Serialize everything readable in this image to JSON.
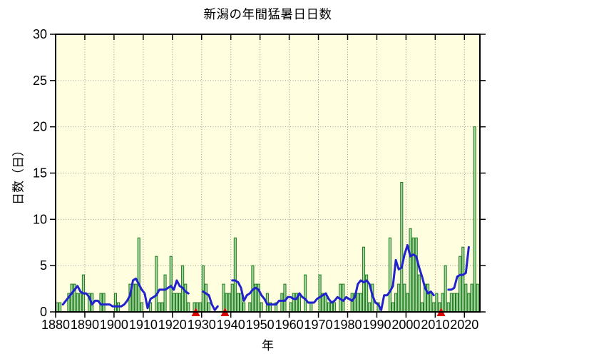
{
  "figure": {
    "title": "新潟の年間猛暑日日数",
    "xlabel": "年",
    "ylabel": "日数（日）"
  },
  "chart_data": {
    "type": "bar",
    "title": "新潟の年間猛暑日日数",
    "xlabel": "年",
    "ylabel": "日数（日）",
    "start_year": 1880,
    "end_year": 2024,
    "values": [
      1,
      1,
      0,
      0,
      2,
      3,
      3,
      2,
      2,
      4,
      0,
      2,
      2,
      0,
      0,
      2,
      2,
      0,
      0,
      0,
      2,
      1,
      0,
      0,
      0,
      3,
      3,
      3,
      8,
      1,
      0,
      0,
      1,
      0,
      6,
      1,
      1,
      4,
      0,
      6,
      2,
      2,
      2,
      5,
      3,
      1,
      0,
      1,
      1,
      1,
      5,
      3,
      1,
      0,
      0,
      0,
      0,
      3,
      2,
      2,
      3,
      8,
      2,
      2,
      1,
      0,
      1,
      5,
      3,
      3,
      1,
      0,
      2,
      1,
      0,
      1,
      0,
      2,
      3,
      0,
      1,
      2,
      2,
      2,
      0,
      4,
      0,
      1,
      0,
      0,
      4,
      2,
      2,
      1,
      1,
      1,
      0,
      3,
      3,
      0,
      0,
      2,
      2,
      2,
      2,
      7,
      4,
      1,
      3,
      0,
      1,
      0,
      0,
      0,
      8,
      1,
      2,
      3,
      14,
      3,
      2,
      9,
      8,
      8,
      4,
      1,
      3,
      3,
      2,
      1,
      2,
      1,
      2,
      5,
      1,
      2,
      2,
      2,
      6,
      7,
      3,
      2,
      3,
      20,
      3
    ],
    "moving_average_window": 5,
    "line_segments": [
      [
        1882,
        1925
      ],
      [
        1930,
        1935
      ],
      [
        1940,
        2009
      ],
      [
        2014,
        2021
      ]
    ],
    "marker_years": [
      1928,
      1938,
      2012
    ],
    "xlim": [
      1880,
      2025.3
    ],
    "ylim": [
      0,
      30
    ],
    "x_ticks": [
      1880,
      1890,
      1900,
      1910,
      1920,
      1930,
      1940,
      1950,
      1960,
      1970,
      1980,
      1990,
      2000,
      2010,
      2020
    ],
    "y_ticks": [
      0,
      5,
      10,
      15,
      20,
      25,
      30
    ],
    "grid": "dotted",
    "legend": "none",
    "colors": {
      "plot_bg": "#ffffe0",
      "grid": "#999999",
      "bar_fill": "#a8d8a2",
      "bar_edge": "#1e7a1e",
      "line": "#2222cc",
      "marker": "#dd0000",
      "axis": "#000000"
    }
  }
}
